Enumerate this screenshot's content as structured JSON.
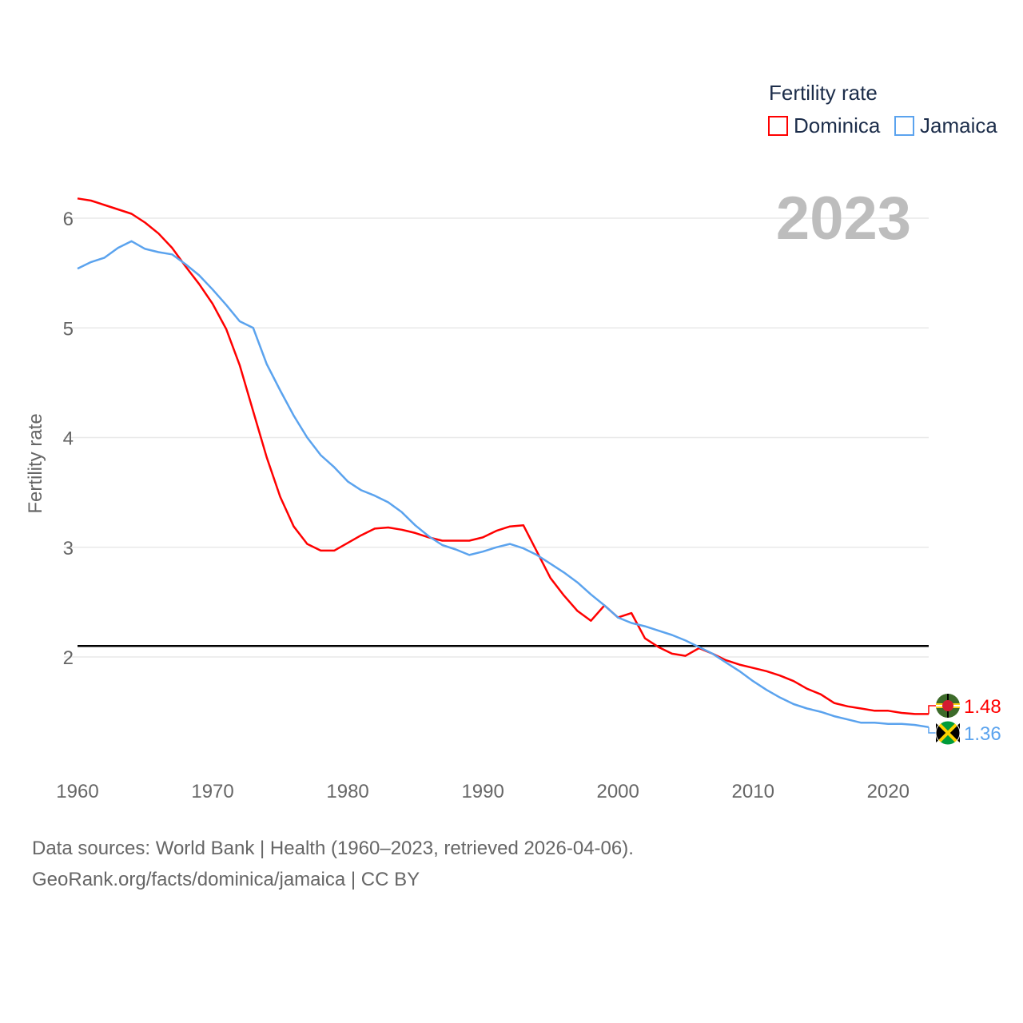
{
  "chart_data": {
    "type": "line",
    "title": "Fertility rate",
    "ylabel": "Fertility rate",
    "xlabel": "",
    "year_label": "2023",
    "xlim": [
      1960,
      2023
    ],
    "ylim": [
      1.0,
      6.2
    ],
    "x_ticks": [
      1960,
      1970,
      1980,
      1990,
      2000,
      2010,
      2020
    ],
    "y_ticks": [
      2,
      3,
      4,
      5,
      6
    ],
    "grid": true,
    "legend_position": "top-right",
    "reference_line": {
      "value": 2.1,
      "color": "#000000"
    },
    "x": [
      1960,
      1961,
      1962,
      1963,
      1964,
      1965,
      1966,
      1967,
      1968,
      1969,
      1970,
      1971,
      1972,
      1973,
      1974,
      1975,
      1976,
      1977,
      1978,
      1979,
      1980,
      1981,
      1982,
      1983,
      1984,
      1985,
      1986,
      1987,
      1988,
      1989,
      1990,
      1991,
      1992,
      1993,
      1994,
      1995,
      1996,
      1997,
      1998,
      1999,
      2000,
      2001,
      2002,
      2003,
      2004,
      2005,
      2006,
      2007,
      2008,
      2009,
      2010,
      2011,
      2012,
      2013,
      2014,
      2015,
      2016,
      2017,
      2018,
      2019,
      2020,
      2021,
      2022,
      2023
    ],
    "series": [
      {
        "name": "Dominica",
        "color": "#ff0000",
        "end_label": "1.48",
        "flag": "dominica-flag",
        "values": [
          6.18,
          6.16,
          6.12,
          6.08,
          6.04,
          5.96,
          5.86,
          5.73,
          5.56,
          5.4,
          5.22,
          4.99,
          4.66,
          4.24,
          3.82,
          3.46,
          3.19,
          3.03,
          2.97,
          2.97,
          3.04,
          3.11,
          3.17,
          3.18,
          3.16,
          3.13,
          3.09,
          3.06,
          3.06,
          3.06,
          3.09,
          3.15,
          3.19,
          3.2,
          2.96,
          2.72,
          2.56,
          2.42,
          2.33,
          2.47,
          2.36,
          2.4,
          2.17,
          2.09,
          2.03,
          2.01,
          2.08,
          2.03,
          1.97,
          1.93,
          1.9,
          1.87,
          1.83,
          1.78,
          1.71,
          1.66,
          1.58,
          1.55,
          1.53,
          1.51,
          1.51,
          1.49,
          1.48,
          1.48
        ]
      },
      {
        "name": "Jamaica",
        "color": "#5ba3ee",
        "end_label": "1.36",
        "flag": "jamaica-flag",
        "values": [
          5.54,
          5.6,
          5.64,
          5.73,
          5.79,
          5.72,
          5.69,
          5.67,
          5.58,
          5.48,
          5.35,
          5.21,
          5.06,
          5.0,
          4.67,
          4.43,
          4.2,
          4.0,
          3.84,
          3.73,
          3.6,
          3.52,
          3.47,
          3.41,
          3.32,
          3.2,
          3.1,
          3.02,
          2.98,
          2.93,
          2.96,
          3.0,
          3.03,
          2.99,
          2.93,
          2.85,
          2.77,
          2.68,
          2.57,
          2.47,
          2.36,
          2.31,
          2.28,
          2.24,
          2.2,
          2.15,
          2.09,
          2.03,
          1.95,
          1.87,
          1.78,
          1.7,
          1.63,
          1.57,
          1.53,
          1.5,
          1.46,
          1.43,
          1.4,
          1.4,
          1.39,
          1.39,
          1.38,
          1.36
        ]
      }
    ]
  },
  "footer": {
    "line1": "Data sources: World Bank | Health (1960–2023, retrieved 2026-04-06).",
    "line2": "GeoRank.org/facts/dominica/jamaica | CC BY"
  }
}
